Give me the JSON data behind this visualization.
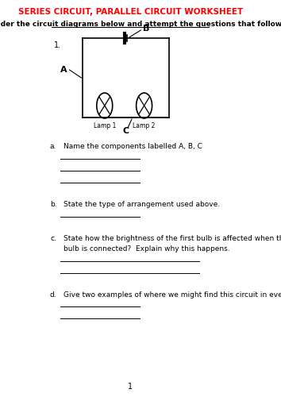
{
  "title": "SERIES CIRCUIT, PARALLEL CIRCUIT WORKSHEET",
  "title_color": "#FF0000",
  "subtitle": "Consider the circuit diagrams below and attempt the questions that follow",
  "circuit_label": "1.",
  "label_A": "A",
  "label_B": "B",
  "label_C": "C",
  "lamp1_label": "Lamp 1",
  "lamp2_label": "Lamp 2",
  "questions": [
    {
      "letter": "a.",
      "text": "Name the components labelled A, B, C",
      "lines": 3
    },
    {
      "letter": "b.",
      "text": "State the type of arrangement used above.",
      "lines": 1
    },
    {
      "letter": "c.",
      "text": "State how the brightness of the first bulb is affected when the second\nbulb is connected?  Explain why this happens.",
      "lines": 2
    },
    {
      "letter": "d.",
      "text": "Give two examples of where we might find this circuit in everyday life.",
      "lines": 2
    }
  ],
  "page_number": "1",
  "bg_color": "#FFFFFF",
  "text_color": "#000000",
  "line_color": "#000000"
}
